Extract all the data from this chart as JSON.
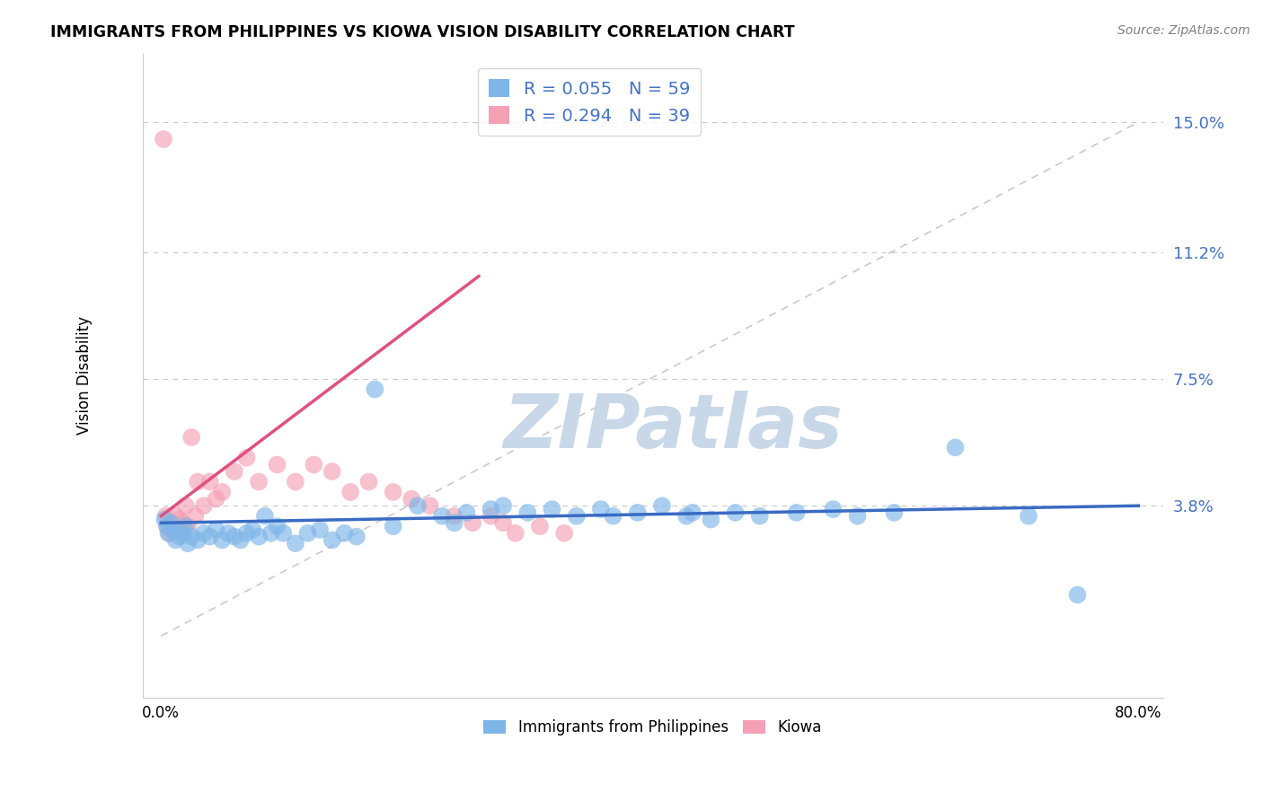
{
  "title": "IMMIGRANTS FROM PHILIPPINES VS KIOWA VISION DISABILITY CORRELATION CHART",
  "source": "Source: ZipAtlas.com",
  "ylabel": "Vision Disability",
  "xlim": [
    -1.5,
    82.0
  ],
  "ylim": [
    -1.8,
    17.0
  ],
  "ytick_vals": [
    3.8,
    7.5,
    11.2,
    15.0
  ],
  "ytick_labels": [
    "3.8%",
    "7.5%",
    "11.2%",
    "15.0%"
  ],
  "xtick_vals": [
    0.0,
    80.0
  ],
  "xtick_labels": [
    "0.0%",
    "80.0%"
  ],
  "blue_R": 0.055,
  "blue_N": 59,
  "pink_R": 0.294,
  "pink_N": 39,
  "blue_color": "#7EB6E8",
  "pink_color": "#F4A0B5",
  "blue_line_color": "#3A6BC4",
  "pink_line_color": "#E05080",
  "diag_line_color": "#C8B8BC",
  "watermark": "ZIPatlas",
  "watermark_color": "#C8D8E8",
  "blue_line_x": [
    0,
    80
  ],
  "blue_line_y": [
    3.3,
    3.8
  ],
  "pink_line_x": [
    0,
    26
  ],
  "pink_line_y": [
    3.5,
    10.5
  ],
  "diag_line_x": [
    0,
    80
  ],
  "diag_line_y": [
    0,
    15.0
  ],
  "blue_scatter_x": [
    0.3,
    0.5,
    0.6,
    0.8,
    1.0,
    1.2,
    1.5,
    1.8,
    2.0,
    2.2,
    2.5,
    3.0,
    3.5,
    4.0,
    4.5,
    5.0,
    5.5,
    6.0,
    6.5,
    7.0,
    7.5,
    8.0,
    8.5,
    9.0,
    9.5,
    10.0,
    11.0,
    12.0,
    13.0,
    14.0,
    15.0,
    16.0,
    17.5,
    19.0,
    21.0,
    23.0,
    24.0,
    25.0,
    27.0,
    28.0,
    30.0,
    32.0,
    34.0,
    36.0,
    37.0,
    39.0,
    41.0,
    43.0,
    43.5,
    45.0,
    47.0,
    49.0,
    52.0,
    55.0,
    57.0,
    60.0,
    65.0,
    71.0,
    75.0
  ],
  "blue_scatter_y": [
    3.4,
    3.2,
    3.0,
    3.3,
    3.1,
    2.8,
    2.9,
    3.0,
    3.2,
    2.7,
    2.9,
    2.8,
    3.0,
    2.9,
    3.1,
    2.8,
    3.0,
    2.9,
    2.8,
    3.0,
    3.1,
    2.9,
    3.5,
    3.0,
    3.2,
    3.0,
    2.7,
    3.0,
    3.1,
    2.8,
    3.0,
    2.9,
    7.2,
    3.2,
    3.8,
    3.5,
    3.3,
    3.6,
    3.7,
    3.8,
    3.6,
    3.7,
    3.5,
    3.7,
    3.5,
    3.6,
    3.8,
    3.5,
    3.6,
    3.4,
    3.6,
    3.5,
    3.6,
    3.7,
    3.5,
    3.6,
    5.5,
    3.5,
    1.2
  ],
  "pink_scatter_x": [
    0.2,
    0.4,
    0.5,
    0.7,
    0.8,
    1.0,
    1.2,
    1.4,
    1.5,
    1.7,
    1.8,
    2.0,
    2.2,
    2.5,
    2.8,
    3.0,
    3.5,
    4.0,
    4.5,
    5.0,
    6.0,
    7.0,
    8.0,
    9.5,
    11.0,
    12.5,
    14.0,
    15.5,
    17.0,
    19.0,
    20.5,
    22.0,
    24.0,
    25.5,
    27.0,
    28.0,
    29.0,
    31.0,
    33.0
  ],
  "pink_scatter_y": [
    14.5,
    3.5,
    3.2,
    3.0,
    3.3,
    3.1,
    3.5,
    3.2,
    3.4,
    3.0,
    3.3,
    3.8,
    3.2,
    5.8,
    3.5,
    4.5,
    3.8,
    4.5,
    4.0,
    4.2,
    4.8,
    5.2,
    4.5,
    5.0,
    4.5,
    5.0,
    4.8,
    4.2,
    4.5,
    4.2,
    4.0,
    3.8,
    3.5,
    3.3,
    3.5,
    3.3,
    3.0,
    3.2,
    3.0
  ]
}
